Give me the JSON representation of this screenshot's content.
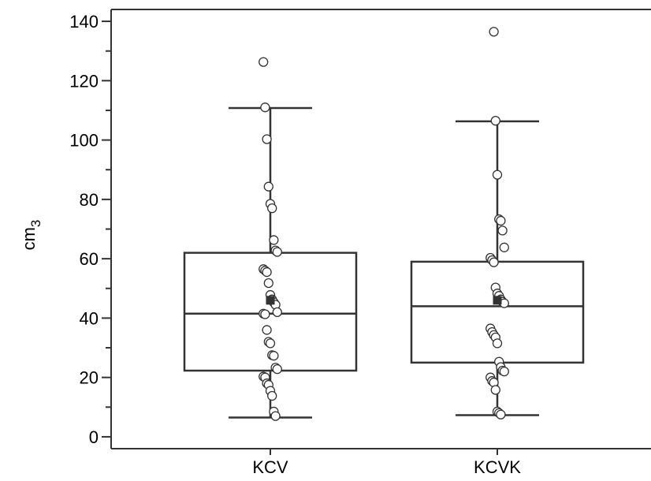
{
  "chart_data": {
    "type": "box",
    "ylabel": "cm",
    "ylabel_sub": "3",
    "ylim": [
      -4,
      144
    ],
    "y_ticks": [
      0,
      20,
      40,
      60,
      80,
      100,
      120,
      140
    ],
    "categories": [
      "KCV",
      "KCVK"
    ],
    "boxes": [
      {
        "category": "KCV",
        "whisker_low": 6.5,
        "q1": 22.3,
        "median": 41.5,
        "q3": 62,
        "whisker_high": 110.8,
        "mean": 46,
        "points": [
          126.3,
          111,
          100.3,
          84.3,
          78.5,
          77,
          66.3,
          62.8,
          62.3,
          56.5,
          56,
          55.5,
          51.8,
          47.8,
          46.3,
          45.3,
          44.5,
          42,
          41.5,
          41.3,
          36,
          32,
          31.5,
          27.5,
          27.3,
          23.3,
          22.8,
          20.3,
          20,
          18,
          17.5,
          15.5,
          13.8,
          8.5,
          7
        ]
      },
      {
        "category": "KCVK",
        "whisker_low": 7.3,
        "q1": 25,
        "median": 44,
        "q3": 59,
        "whisker_high": 106.3,
        "mean": 46,
        "points": [
          136.5,
          106.5,
          88.3,
          73.3,
          72.8,
          69.5,
          63.8,
          60.3,
          59.5,
          58.8,
          50.3,
          48.3,
          47.5,
          46.3,
          45.5,
          45,
          36.5,
          35.3,
          34.3,
          33.5,
          31.5,
          25.3,
          23.5,
          22.3,
          22,
          20,
          18.8,
          18.3,
          15.8,
          8.5,
          8,
          7.5
        ]
      }
    ],
    "point_fill": "#ffffff",
    "line_color": "#333333",
    "mean_marker_color": "#333333"
  }
}
